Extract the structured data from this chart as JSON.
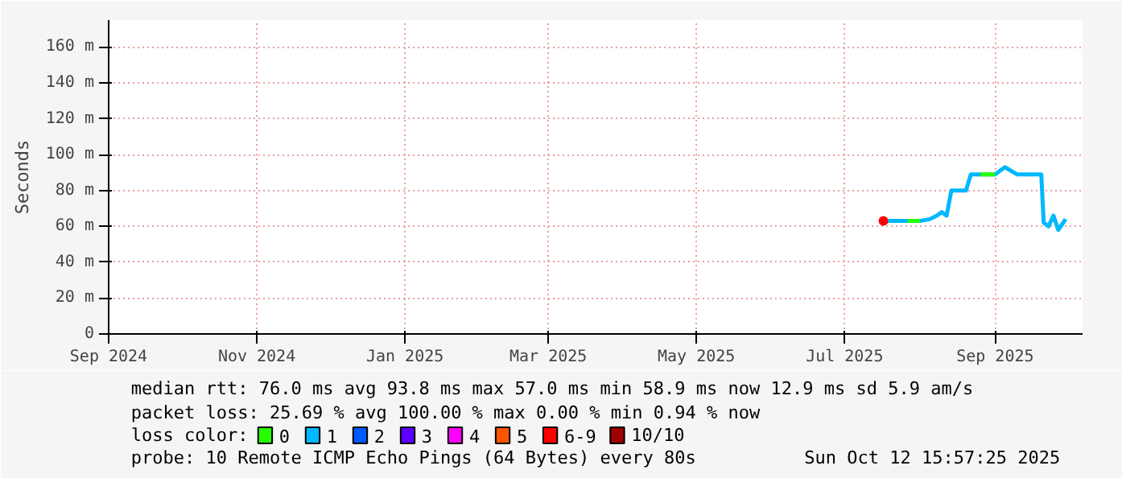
{
  "chart_data": {
    "type": "line",
    "ylabel": "Seconds",
    "legend_title": "loss color:",
    "legend": "bottom",
    "grid": true,
    "xlim": [
      "2024-09-01",
      "2025-10-07"
    ],
    "xticks": [
      {
        "value": "2024-09-01",
        "label": "Sep 2024"
      },
      {
        "value": "2024-11-01",
        "label": "Nov 2024"
      },
      {
        "value": "2025-01-01",
        "label": "Jan 2025"
      },
      {
        "value": "2025-03-01",
        "label": "Mar 2025"
      },
      {
        "value": "2025-05-01",
        "label": "May 2025"
      },
      {
        "value": "2025-07-01",
        "label": "Jul 2025"
      },
      {
        "value": "2025-09-01",
        "label": "Sep 2025"
      }
    ],
    "ylim": [
      0,
      175
    ],
    "yticks": [
      0,
      {
        "value": 20,
        "label": "20 m"
      },
      {
        "value": 40,
        "label": "40 m"
      },
      {
        "value": 60,
        "label": "60 m"
      },
      {
        "value": 80,
        "label": "80 m"
      },
      {
        "value": 100,
        "label": "100 m"
      },
      {
        "value": 120,
        "label": "120 m"
      },
      {
        "value": 140,
        "label": "140 m"
      },
      {
        "value": 160,
        "label": "160 m"
      }
    ],
    "x": [
      "2025-07-17",
      "2025-07-22",
      "2025-07-27",
      "2025-08-01",
      "2025-08-05",
      "2025-08-08",
      "2025-08-10",
      "2025-08-12",
      "2025-08-14",
      "2025-08-16",
      "2025-08-20",
      "2025-08-22",
      "2025-08-26",
      "2025-09-01",
      "2025-09-05",
      "2025-09-10",
      "2025-09-15",
      "2025-09-20",
      "2025-09-21",
      "2025-09-23",
      "2025-09-25",
      "2025-09-27",
      "2025-09-30"
    ],
    "series": [
      {
        "name": "0",
        "color": "#26ff00",
        "values": [
          null,
          null,
          63,
          63,
          null,
          null,
          null,
          null,
          null,
          null,
          null,
          null,
          89,
          89,
          null,
          null,
          null,
          null,
          null,
          null,
          null,
          null,
          null
        ]
      },
      {
        "name": "1",
        "color": "#00b8ff",
        "values": [
          63,
          63,
          63,
          63,
          64,
          66,
          68,
          66,
          80,
          80,
          80,
          89,
          89,
          89,
          93,
          89,
          89,
          89,
          62,
          60,
          66,
          58,
          64
        ]
      },
      {
        "name": "2",
        "color": "#0059ff",
        "values": [
          null,
          null,
          null,
          null,
          null,
          null,
          null,
          null,
          null,
          null,
          null,
          null,
          null,
          null,
          null,
          null,
          null,
          null,
          null,
          null,
          null,
          null,
          null
        ]
      },
      {
        "name": "3",
        "color": "#5e00ff",
        "values": [
          null,
          null,
          null,
          null,
          null,
          null,
          null,
          null,
          null,
          null,
          null,
          null,
          null,
          null,
          null,
          null,
          null,
          null,
          null,
          null,
          null,
          null,
          null
        ]
      },
      {
        "name": "4",
        "color": "#ff00ff",
        "values": [
          null,
          null,
          null,
          null,
          null,
          null,
          null,
          null,
          null,
          null,
          null,
          null,
          null,
          null,
          null,
          null,
          null,
          null,
          null,
          null,
          null,
          null,
          null
        ]
      },
      {
        "name": "5",
        "color": "#ff5500",
        "values": [
          null,
          null,
          null,
          null,
          null,
          null,
          null,
          null,
          null,
          null,
          null,
          null,
          null,
          null,
          null,
          null,
          null,
          null,
          null,
          null,
          null,
          null,
          null
        ]
      },
      {
        "name": "6-9",
        "color": "#ff0000",
        "marker": "circle",
        "values": [
          63,
          null,
          null,
          null,
          null,
          null,
          null,
          null,
          null,
          null,
          null,
          null,
          null,
          null,
          null,
          null,
          null,
          null,
          null,
          null,
          null,
          null,
          null
        ]
      },
      {
        "name": "10/10",
        "color": "#a10000",
        "values": [
          null,
          null,
          null,
          null,
          null,
          null,
          null,
          null,
          null,
          null,
          null,
          null,
          null,
          null,
          null,
          null,
          null,
          null,
          null,
          null,
          null,
          null,
          null
        ]
      }
    ],
    "annotations": [
      "median rtt:  76.0 ms avg  93.8 ms max  57.0 ms min  58.9 ms now  12.9 ms sd  5.9   am/s",
      "packet loss: 25.69 % avg  100.00 % max  0.00 % min  0.94 % now",
      "probe:       10 Remote ICMP Echo Pings (64 Bytes) every 80s",
      "Sun Oct 12 15:57:25 2025"
    ]
  }
}
